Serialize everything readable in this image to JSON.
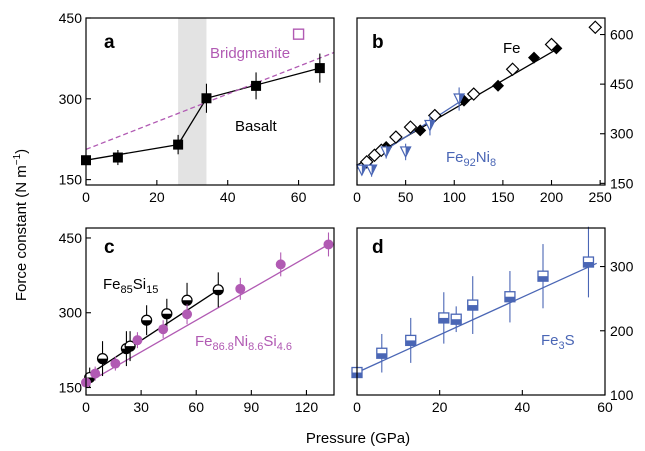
{
  "ylabel": "Force constant (N m",
  "ylabel_sup": "−1",
  "ylabel_end": ")",
  "xlabel": "Pressure (GPa)",
  "chart_data": [
    {
      "panel": "a",
      "type": "scatter",
      "xlim": [
        0,
        70
      ],
      "ylim": [
        140,
        450
      ],
      "xticks": [
        0,
        20,
        40,
        60
      ],
      "yticks": [
        150,
        300,
        450
      ],
      "y_axis_side": "left",
      "shaded_region_x": [
        26,
        34
      ],
      "shaded_color": "#e3e3e3",
      "annotations": [
        {
          "text": "Bridgmanite",
          "color": "#b15ab3"
        },
        {
          "text": "Basalt",
          "color": "#000000"
        }
      ],
      "series": [
        {
          "name": "Basalt",
          "color": "#000000",
          "marker": "square-filled",
          "line": "solid",
          "fit": [
            [
              0,
              186
            ],
            [
              26,
              215
            ],
            [
              34,
              301
            ],
            [
              66,
              357
            ]
          ],
          "points": [
            {
              "x": 0,
              "y": 186,
              "err": 10
            },
            {
              "x": 9,
              "y": 191,
              "err": 14
            },
            {
              "x": 26,
              "y": 215,
              "err": 18
            },
            {
              "x": 34,
              "y": 301,
              "err": 27
            },
            {
              "x": 48,
              "y": 324,
              "err": 25
            },
            {
              "x": 66,
              "y": 357,
              "err": 27
            }
          ]
        },
        {
          "name": "Bridgmanite",
          "color": "#b15ab3",
          "marker": "square-open",
          "line": "dashed",
          "fit": [
            [
              0,
              206
            ],
            [
              70,
              386
            ]
          ],
          "points": [
            {
              "x": 60,
              "y": 420,
              "err": 0
            }
          ]
        }
      ]
    },
    {
      "panel": "b",
      "type": "scatter",
      "xlim": [
        0,
        255
      ],
      "ylim": [
        145,
        650
      ],
      "xticks": [
        0,
        50,
        100,
        150,
        200,
        250
      ],
      "yticks": [
        150,
        300,
        450,
        600
      ],
      "y_axis_side": "right",
      "annotations": [
        {
          "text": "Fe",
          "color": "#000000"
        },
        {
          "text": "Fe",
          "sub1": "92",
          "text2": "Ni",
          "sub2": "8",
          "color": "#4a66b5"
        }
      ],
      "series": [
        {
          "name": "Fe",
          "color": "#000000",
          "marker": "diamond-filled",
          "line": "solid",
          "fit": [
            [
              0,
              205
            ],
            [
              205,
              555
            ]
          ],
          "points": [
            {
              "x": 30,
              "y": 260,
              "err": 0
            },
            {
              "x": 65,
              "y": 310,
              "err": 0
            },
            {
              "x": 110,
              "y": 400,
              "err": 0
            },
            {
              "x": 145,
              "y": 445,
              "err": 0
            },
            {
              "x": 182,
              "y": 530,
              "err": 0
            },
            {
              "x": 205,
              "y": 558,
              "err": 0
            }
          ]
        },
        {
          "name": "Fe open",
          "color": "#000000",
          "marker": "diamond-open",
          "line": "none",
          "points": [
            {
              "x": 10,
              "y": 215,
              "err": 0
            },
            {
              "x": 18,
              "y": 235,
              "err": 0
            },
            {
              "x": 25,
              "y": 250,
              "err": 0
            },
            {
              "x": 40,
              "y": 290,
              "err": 0
            },
            {
              "x": 55,
              "y": 320,
              "err": 0
            },
            {
              "x": 80,
              "y": 355,
              "err": 0
            },
            {
              "x": 120,
              "y": 420,
              "err": 0
            },
            {
              "x": 160,
              "y": 495,
              "err": 0
            },
            {
              "x": 200,
              "y": 570,
              "err": 0
            },
            {
              "x": 245,
              "y": 622,
              "err": 0
            }
          ]
        },
        {
          "name": "Fe92Ni8",
          "color": "#4a66b5",
          "marker": "tri-half",
          "line": "solid",
          "fit": [
            [
              0,
              195
            ],
            [
              110,
              405
            ]
          ],
          "points": [
            {
              "x": 5,
              "y": 190,
              "err": 15
            },
            {
              "x": 15,
              "y": 190,
              "err": 20
            },
            {
              "x": 30,
              "y": 245,
              "err": 20
            },
            {
              "x": 50,
              "y": 245,
              "err": 25
            },
            {
              "x": 75,
              "y": 325,
              "err": 30
            },
            {
              "x": 105,
              "y": 405,
              "err": 35
            }
          ]
        }
      ]
    },
    {
      "panel": "c",
      "type": "scatter",
      "xlim": [
        0,
        135
      ],
      "ylim": [
        135,
        470
      ],
      "xticks": [
        0,
        30,
        60,
        90,
        120
      ],
      "yticks": [
        150,
        300,
        450
      ],
      "y_axis_side": "left",
      "annotations": [
        {
          "text": "Fe",
          "sub1": "85",
          "text2": "Si",
          "sub2": "15",
          "color": "#000000"
        },
        {
          "text": "Fe",
          "sub1": "86.8",
          "text2": "Ni",
          "sub2": "8.6",
          "text3": "Si",
          "sub3": "4.6",
          "color": "#b15ab3"
        }
      ],
      "series": [
        {
          "name": "Fe85Si15",
          "color": "#000000",
          "marker": "circle-half",
          "line": "solid",
          "fit": [
            [
              0,
              172
            ],
            [
              72,
              346
            ]
          ],
          "points": [
            {
              "x": 2,
              "y": 170,
              "err": 20
            },
            {
              "x": 9,
              "y": 208,
              "err": 35
            },
            {
              "x": 22,
              "y": 228,
              "err": 35
            },
            {
              "x": 24,
              "y": 233,
              "err": 30
            },
            {
              "x": 33,
              "y": 285,
              "err": 30
            },
            {
              "x": 44,
              "y": 298,
              "err": 30
            },
            {
              "x": 55,
              "y": 325,
              "err": 35
            },
            {
              "x": 72,
              "y": 346,
              "err": 35
            }
          ]
        },
        {
          "name": "Fe86.8Ni8.6Si4.6",
          "color": "#b15ab3",
          "marker": "circle-filled",
          "line": "solid",
          "fit": [
            [
              0,
              158
            ],
            [
              132,
              437
            ]
          ],
          "points": [
            {
              "x": 0,
              "y": 160,
              "err": 12
            },
            {
              "x": 5,
              "y": 178,
              "err": 14
            },
            {
              "x": 16,
              "y": 198,
              "err": 14
            },
            {
              "x": 28,
              "y": 245,
              "err": 16
            },
            {
              "x": 42,
              "y": 267,
              "err": 18
            },
            {
              "x": 55,
              "y": 297,
              "err": 20
            },
            {
              "x": 84,
              "y": 348,
              "err": 22
            },
            {
              "x": 106,
              "y": 397,
              "err": 24
            },
            {
              "x": 132,
              "y": 437,
              "err": 24
            }
          ]
        }
      ]
    },
    {
      "panel": "d",
      "type": "scatter",
      "xlim": [
        0,
        60
      ],
      "ylim": [
        100,
        360
      ],
      "xticks": [
        0,
        20,
        40,
        60
      ],
      "yticks": [
        100,
        200,
        300
      ],
      "y_axis_side": "right",
      "annotations": [
        {
          "text": "Fe",
          "sub1": "3",
          "text2": "S",
          "sub2": "",
          "color": "#4a66b5"
        }
      ],
      "series": [
        {
          "name": "Fe3S",
          "color": "#4a66b5",
          "marker": "square-half",
          "line": "solid",
          "fit": [
            [
              0,
              135
            ],
            [
              58,
              305
            ]
          ],
          "points": [
            {
              "x": 0,
              "y": 135,
              "err": 6
            },
            {
              "x": 6,
              "y": 165,
              "err": 30
            },
            {
              "x": 13,
              "y": 185,
              "err": 35
            },
            {
              "x": 21,
              "y": 220,
              "err": 40
            },
            {
              "x": 24,
              "y": 218,
              "err": 20
            },
            {
              "x": 28,
              "y": 240,
              "err": 45
            },
            {
              "x": 37,
              "y": 253,
              "err": 40
            },
            {
              "x": 45,
              "y": 285,
              "err": 50
            },
            {
              "x": 56,
              "y": 307,
              "err": 55
            }
          ]
        }
      ]
    }
  ]
}
